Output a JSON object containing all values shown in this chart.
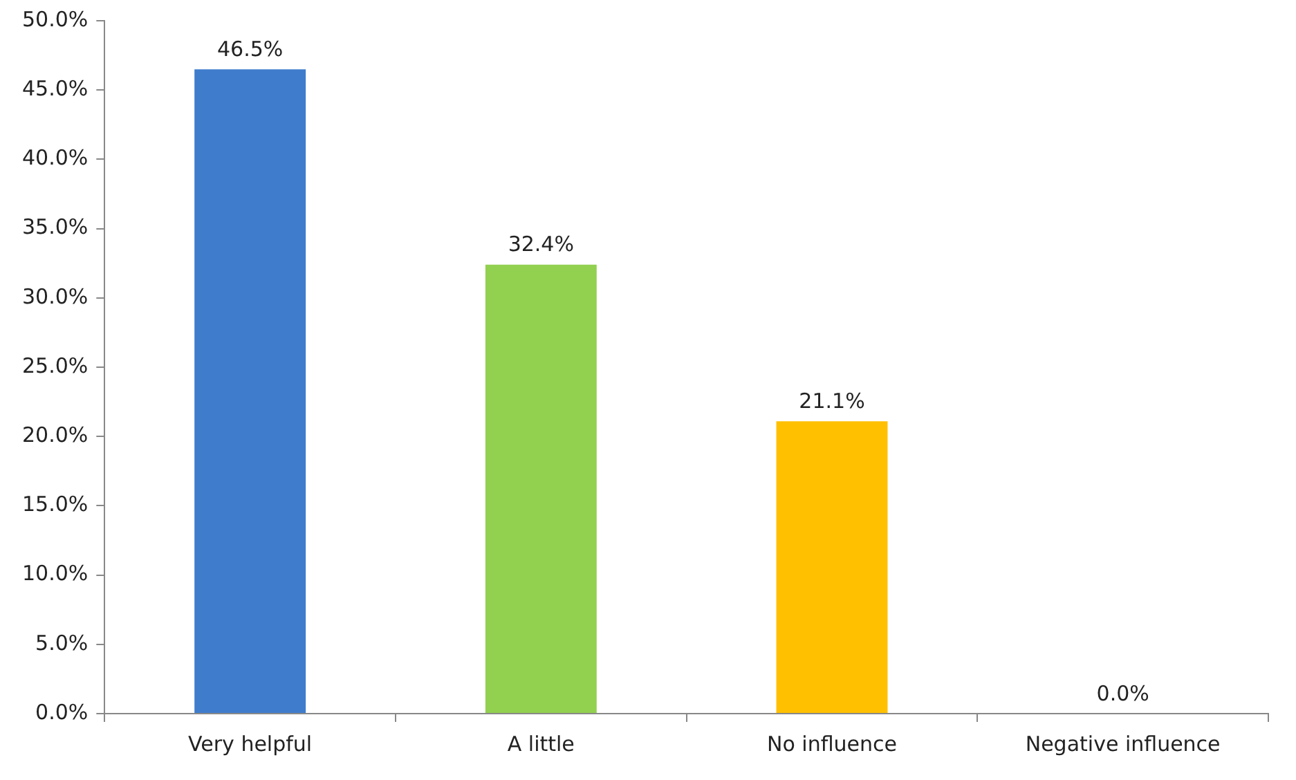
{
  "chart_data": {
    "type": "bar",
    "categories": [
      "Very helpful",
      "A little",
      "No influence",
      "Negative influence"
    ],
    "values": [
      46.5,
      32.4,
      21.1,
      0
    ],
    "value_labels": [
      "46.5%",
      "32.4%",
      "21.1%",
      "0.0%"
    ],
    "colors": [
      "#3f7ccc",
      "#92d050",
      "#ffc000",
      "#8064a2"
    ],
    "ylim": [
      0,
      50
    ],
    "yticks": [
      {
        "value": 0,
        "label": "0.0%"
      },
      {
        "value": 5,
        "label": "5.0%"
      },
      {
        "value": 10,
        "label": "10.0%"
      },
      {
        "value": 15,
        "label": "15.0%"
      },
      {
        "value": 20,
        "label": "20.0%"
      },
      {
        "value": 25,
        "label": "25.0%"
      },
      {
        "value": 30,
        "label": "30.0%"
      },
      {
        "value": 35,
        "label": "35.0%"
      },
      {
        "value": 40,
        "label": "40.0%"
      },
      {
        "value": 45,
        "label": "45.0%"
      },
      {
        "value": 50,
        "label": "50.0%"
      }
    ],
    "grid": false,
    "legend": false
  }
}
